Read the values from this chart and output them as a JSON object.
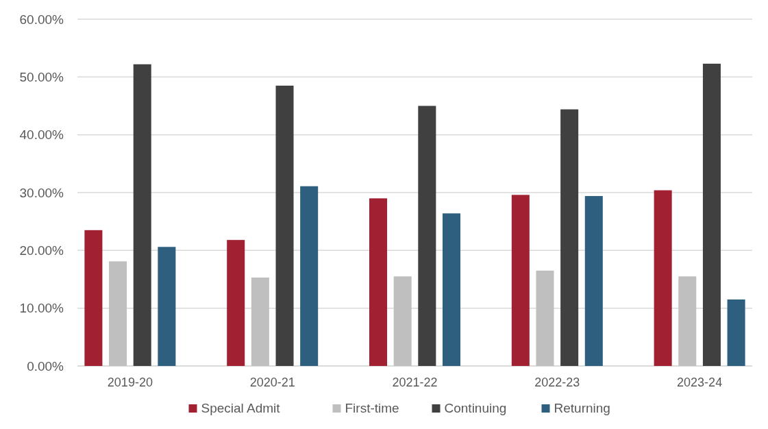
{
  "chart_data": {
    "type": "bar",
    "categories": [
      "2019-20",
      "2020-21",
      "2021-22",
      "2022-23",
      "2023-24"
    ],
    "series": [
      {
        "name": "Special Admit",
        "color": "#a12133",
        "values": [
          23.5,
          21.8,
          29.0,
          29.6,
          30.4
        ]
      },
      {
        "name": "First-time",
        "color": "#bfbfbf",
        "values": [
          18.1,
          15.3,
          15.5,
          16.5,
          15.5
        ]
      },
      {
        "name": "Continuing",
        "color": "#404040",
        "values": [
          52.2,
          48.5,
          45.0,
          44.4,
          52.3
        ]
      },
      {
        "name": "Returning",
        "color": "#2e5f7f",
        "values": [
          20.6,
          31.1,
          26.4,
          29.4,
          11.5
        ]
      }
    ],
    "ylim": [
      0,
      60
    ],
    "yticks": [
      {
        "value": 0,
        "label": "0.00%"
      },
      {
        "value": 10,
        "label": "10.00%"
      },
      {
        "value": 20,
        "label": "20.00%"
      },
      {
        "value": 30,
        "label": "30.00%"
      },
      {
        "value": 40,
        "label": "40.00%"
      },
      {
        "value": 50,
        "label": "50.00%"
      },
      {
        "value": 60,
        "label": "60.00%"
      }
    ],
    "grid": "y",
    "legend": "bottom"
  }
}
